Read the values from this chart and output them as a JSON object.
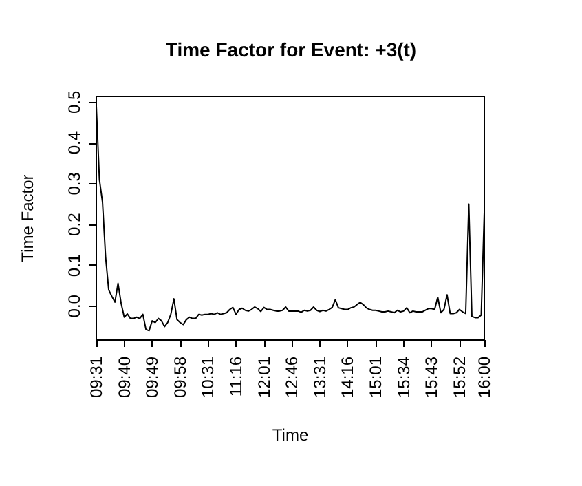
{
  "chart_data": {
    "type": "line",
    "title": "Time Factor for Event: +3(t)",
    "xlabel": "Time",
    "ylabel": "Time Factor",
    "categories": [
      "09:31",
      null,
      null,
      null,
      null,
      null,
      null,
      null,
      null,
      "09:40",
      null,
      null,
      null,
      null,
      null,
      null,
      null,
      null,
      "09:49",
      null,
      null,
      null,
      null,
      null,
      null,
      null,
      null,
      "09:58",
      null,
      null,
      null,
      null,
      null,
      null,
      null,
      null,
      "10:31",
      null,
      null,
      null,
      null,
      null,
      null,
      null,
      null,
      "11:16",
      null,
      null,
      null,
      null,
      null,
      null,
      null,
      null,
      "12:01",
      null,
      null,
      null,
      null,
      null,
      null,
      null,
      null,
      "12:46",
      null,
      null,
      null,
      null,
      null,
      null,
      null,
      null,
      "13:31",
      null,
      null,
      null,
      null,
      null,
      null,
      null,
      null,
      "14:16",
      null,
      null,
      null,
      null,
      null,
      null,
      null,
      null,
      "15:01",
      null,
      null,
      null,
      null,
      null,
      null,
      null,
      null,
      "15:34",
      null,
      null,
      null,
      null,
      null,
      null,
      null,
      null,
      "15:43",
      null,
      null,
      null,
      null,
      null,
      null,
      null,
      null,
      "15:52",
      null,
      null,
      null,
      null,
      null,
      null,
      null,
      "16:00"
    ],
    "series": [
      {
        "color": "#000000",
        "values": [
          0.49,
          0.31,
          0.255,
          0.12,
          0.04,
          0.024,
          0.01,
          0.056,
          0.007,
          -0.027,
          -0.019,
          -0.03,
          -0.03,
          -0.027,
          -0.03,
          -0.02,
          -0.057,
          -0.06,
          -0.036,
          -0.04,
          -0.03,
          -0.036,
          -0.05,
          -0.04,
          -0.02,
          0.018,
          -0.033,
          -0.04,
          -0.045,
          -0.033,
          -0.027,
          -0.03,
          -0.03,
          -0.02,
          -0.022,
          -0.02,
          -0.02,
          -0.018,
          -0.02,
          -0.016,
          -0.02,
          -0.018,
          -0.016,
          -0.008,
          -0.003,
          -0.02,
          -0.008,
          -0.005,
          -0.01,
          -0.012,
          -0.008,
          -0.002,
          -0.006,
          -0.013,
          -0.003,
          -0.008,
          -0.008,
          -0.01,
          -0.012,
          -0.012,
          -0.01,
          -0.002,
          -0.012,
          -0.012,
          -0.012,
          -0.012,
          -0.015,
          -0.01,
          -0.012,
          -0.01,
          -0.002,
          -0.01,
          -0.013,
          -0.01,
          -0.012,
          -0.008,
          -0.003,
          0.016,
          -0.004,
          -0.006,
          -0.008,
          -0.008,
          -0.004,
          -0.002,
          0.004,
          0.009,
          0.004,
          -0.004,
          -0.008,
          -0.01,
          -0.01,
          -0.012,
          -0.014,
          -0.014,
          -0.012,
          -0.014,
          -0.016,
          -0.01,
          -0.014,
          -0.012,
          -0.004,
          -0.016,
          -0.012,
          -0.014,
          -0.014,
          -0.014,
          -0.01,
          -0.006,
          -0.006,
          -0.008,
          0.022,
          -0.016,
          -0.008,
          0.028,
          -0.018,
          -0.018,
          -0.016,
          -0.008,
          -0.014,
          -0.018,
          0.25,
          -0.025,
          -0.028,
          -0.028,
          -0.022,
          0.23
        ]
      }
    ],
    "ylim": [
      -0.083,
      0.514
    ],
    "yticks": [
      {
        "value": 0,
        "label": "0.0"
      },
      0.1,
      0.2,
      0.3,
      0.4,
      0.5
    ],
    "line_style": "solid",
    "marker": "none"
  }
}
